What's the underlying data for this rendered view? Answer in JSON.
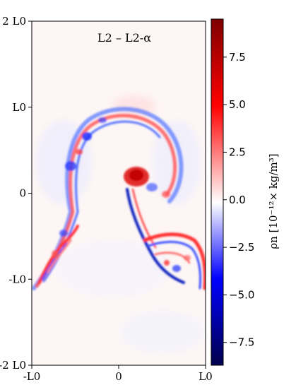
{
  "chart_data": {
    "type": "heatmap",
    "title": "L2 – L2-α",
    "x_ticks": [
      {
        "value": -1,
        "label": "-L0"
      },
      {
        "value": 0,
        "label": "0"
      },
      {
        "value": 1,
        "label": "L0"
      }
    ],
    "y_ticks": [
      {
        "value": 2,
        "label": "2 L0"
      },
      {
        "value": 1,
        "label": "L0"
      },
      {
        "value": 0,
        "label": "0"
      },
      {
        "value": -1,
        "label": "-L0"
      },
      {
        "value": -2,
        "label": "-2 L0"
      }
    ],
    "xlim": [
      -1,
      1
    ],
    "ylim": [
      -2,
      2
    ],
    "colorbar": {
      "label": "ρn [10⁻¹²× kg/m³]",
      "range": [
        -8.7,
        9.5
      ],
      "ticks": [
        {
          "value": 7.5,
          "label": "7.5"
        },
        {
          "value": 5.0,
          "label": "5.0"
        },
        {
          "value": 2.5,
          "label": "2.5"
        },
        {
          "value": 0.0,
          "label": "0.0"
        },
        {
          "value": -2.5,
          "label": "−2.5"
        },
        {
          "value": -5.0,
          "label": "−5.0"
        },
        {
          "value": -7.5,
          "label": "−7.5"
        }
      ],
      "colormap": "seismic",
      "colors": {
        "low": "#00004c",
        "mid": "#ffffff",
        "high": "#7f0000"
      }
    },
    "grid": false
  }
}
